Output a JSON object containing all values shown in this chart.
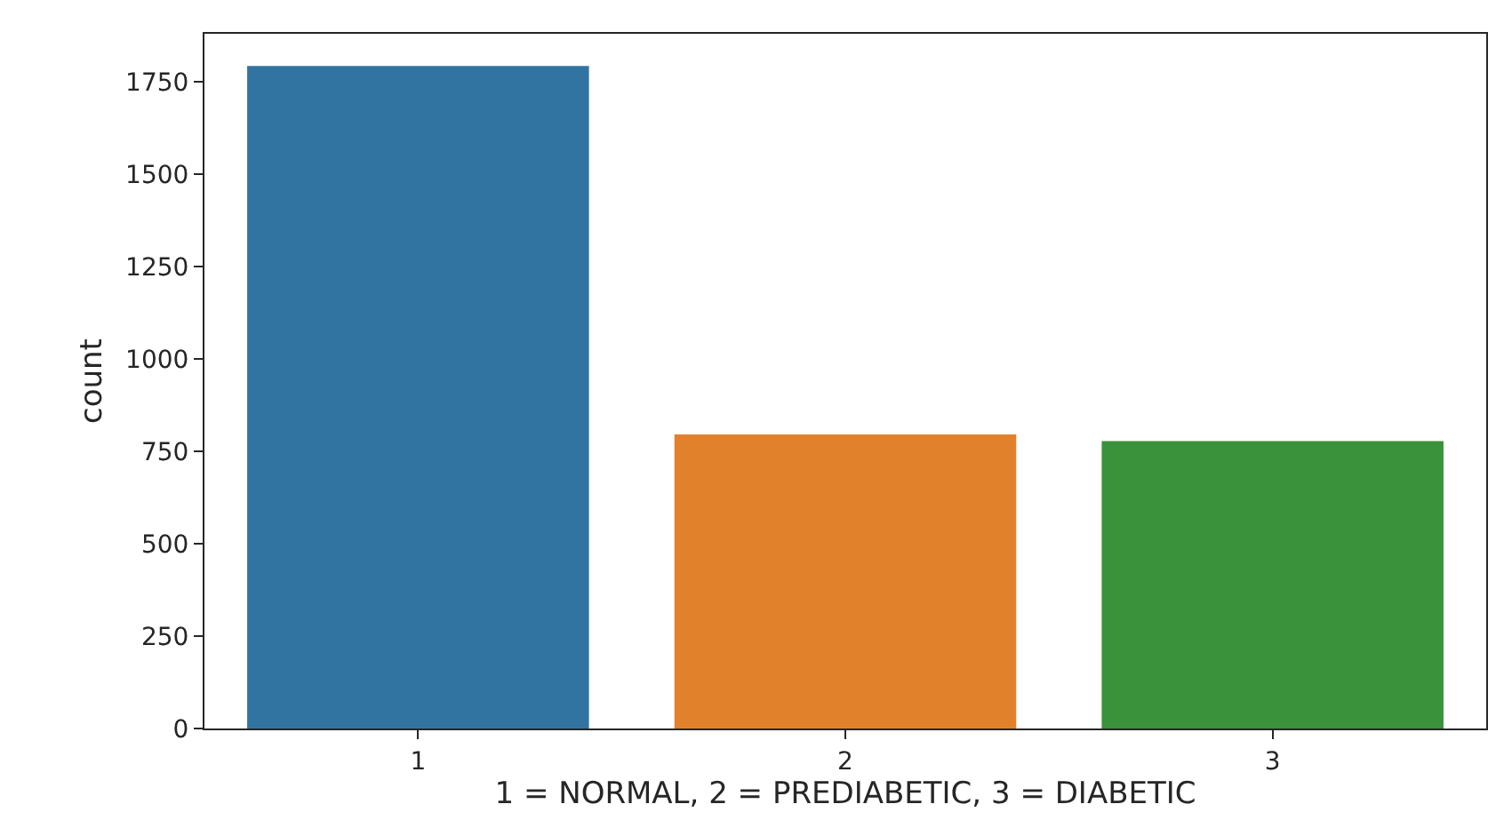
{
  "chart_data": {
    "type": "bar",
    "categories": [
      "1",
      "2",
      "3"
    ],
    "values": [
      1793,
      796,
      778
    ],
    "colors": [
      "#3274a1",
      "#e1812c",
      "#3a923a"
    ],
    "xlabel": "1 = NORMAL, 2 = PREDIABETIC, 3 = DIABETIC",
    "ylabel": "count",
    "ylim": [
      0,
      1880
    ],
    "yticks": [
      0,
      250,
      500,
      750,
      1000,
      1250,
      1500,
      1750
    ]
  }
}
